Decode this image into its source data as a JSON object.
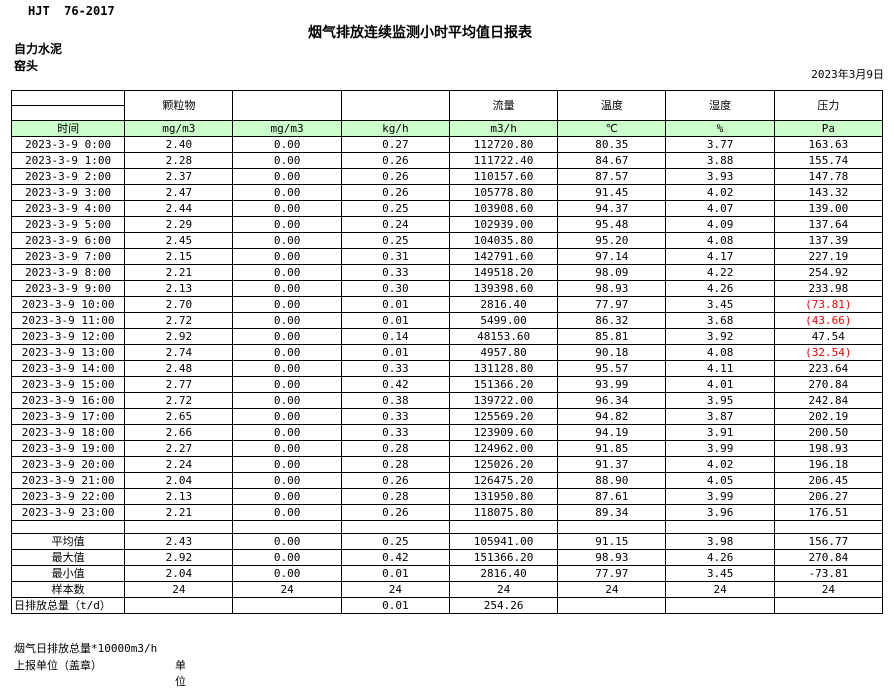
{
  "header": {
    "standard": "HJT  76-2017",
    "title": "烟气排放连续监测小时平均值日报表",
    "company": "自力水泥",
    "stack": "窑头",
    "date": "2023年3月9日"
  },
  "table": {
    "group_headers": [
      "",
      "颗粒物",
      "",
      "",
      "流量",
      "温度",
      "湿度",
      "压力"
    ],
    "unit_headers": [
      "时间",
      "mg/m3",
      "mg/m3",
      "kg/h",
      "m3/h",
      "℃",
      "%",
      "Pa"
    ],
    "rows": [
      [
        "2023-3-9 0:00",
        "2.40",
        "0.00",
        "0.27",
        "112720.80",
        "80.35",
        "3.77",
        "163.63"
      ],
      [
        "2023-3-9 1:00",
        "2.28",
        "0.00",
        "0.26",
        "111722.40",
        "84.67",
        "3.88",
        "155.74"
      ],
      [
        "2023-3-9 2:00",
        "2.37",
        "0.00",
        "0.26",
        "110157.60",
        "87.57",
        "3.93",
        "147.78"
      ],
      [
        "2023-3-9 3:00",
        "2.47",
        "0.00",
        "0.26",
        "105778.80",
        "91.45",
        "4.02",
        "143.32"
      ],
      [
        "2023-3-9 4:00",
        "2.44",
        "0.00",
        "0.25",
        "103908.60",
        "94.37",
        "4.07",
        "139.00"
      ],
      [
        "2023-3-9 5:00",
        "2.29",
        "0.00",
        "0.24",
        "102939.00",
        "95.48",
        "4.09",
        "137.64"
      ],
      [
        "2023-3-9 6:00",
        "2.45",
        "0.00",
        "0.25",
        "104035.80",
        "95.20",
        "4.08",
        "137.39"
      ],
      [
        "2023-3-9 7:00",
        "2.15",
        "0.00",
        "0.31",
        "142791.60",
        "97.14",
        "4.17",
        "227.19"
      ],
      [
        "2023-3-9 8:00",
        "2.21",
        "0.00",
        "0.33",
        "149518.20",
        "98.09",
        "4.22",
        "254.92"
      ],
      [
        "2023-3-9 9:00",
        "2.13",
        "0.00",
        "0.30",
        "139398.60",
        "98.93",
        "4.26",
        "233.98"
      ],
      [
        "2023-3-9 10:00",
        "2.70",
        "0.00",
        "0.01",
        "2816.40",
        "77.97",
        "3.45",
        "(73.81)"
      ],
      [
        "2023-3-9 11:00",
        "2.72",
        "0.00",
        "0.01",
        "5499.00",
        "86.32",
        "3.68",
        "(43.66)"
      ],
      [
        "2023-3-9 12:00",
        "2.92",
        "0.00",
        "0.14",
        "48153.60",
        "85.81",
        "3.92",
        "47.54"
      ],
      [
        "2023-3-9 13:00",
        "2.74",
        "0.00",
        "0.01",
        "4957.80",
        "90.18",
        "4.08",
        "(32.54)"
      ],
      [
        "2023-3-9 14:00",
        "2.48",
        "0.00",
        "0.33",
        "131128.80",
        "95.57",
        "4.11",
        "223.64"
      ],
      [
        "2023-3-9 15:00",
        "2.77",
        "0.00",
        "0.42",
        "151366.20",
        "93.99",
        "4.01",
        "270.84"
      ],
      [
        "2023-3-9 16:00",
        "2.72",
        "0.00",
        "0.38",
        "139722.00",
        "96.34",
        "3.95",
        "242.84"
      ],
      [
        "2023-3-9 17:00",
        "2.65",
        "0.00",
        "0.33",
        "125569.20",
        "94.82",
        "3.87",
        "202.19"
      ],
      [
        "2023-3-9 18:00",
        "2.66",
        "0.00",
        "0.33",
        "123909.60",
        "94.19",
        "3.91",
        "200.50"
      ],
      [
        "2023-3-9 19:00",
        "2.27",
        "0.00",
        "0.28",
        "124962.00",
        "91.85",
        "3.99",
        "198.93"
      ],
      [
        "2023-3-9 20:00",
        "2.24",
        "0.00",
        "0.28",
        "125026.20",
        "91.37",
        "4.02",
        "196.18"
      ],
      [
        "2023-3-9 21:00",
        "2.04",
        "0.00",
        "0.26",
        "126475.20",
        "88.90",
        "4.05",
        "206.45"
      ],
      [
        "2023-3-9 22:00",
        "2.13",
        "0.00",
        "0.28",
        "131950.80",
        "87.61",
        "3.99",
        "206.27"
      ],
      [
        "2023-3-9 23:00",
        "2.21",
        "0.00",
        "0.26",
        "118075.80",
        "89.34",
        "3.96",
        "176.51"
      ]
    ],
    "summary_rows": [
      {
        "label": "平均值",
        "values": [
          "2.43",
          "0.00",
          "0.25",
          "105941.00",
          "91.15",
          "3.98",
          "156.77"
        ]
      },
      {
        "label": "最大值",
        "values": [
          "2.92",
          "0.00",
          "0.42",
          "151366.20",
          "98.93",
          "4.26",
          "270.84"
        ]
      },
      {
        "label": "最小值",
        "values": [
          "2.04",
          "0.00",
          "0.01",
          "2816.40",
          "77.97",
          "3.45",
          "-73.81"
        ]
      },
      {
        "label": "样本数",
        "values": [
          "24",
          "24",
          "24",
          "24",
          "24",
          "24",
          "24"
        ]
      },
      {
        "label": "日排放总量（t/d）",
        "values": [
          "",
          "",
          "0.01",
          "254.26",
          "",
          "",
          ""
        ]
      }
    ]
  },
  "footer": {
    "note": "烟气日排放总量*10000m3/h",
    "report_unit_label": "上报单位（盖章）",
    "unit_label": "单位"
  },
  "colors": {
    "header_fill": "#ccffcc",
    "negative": "#ff0000"
  }
}
